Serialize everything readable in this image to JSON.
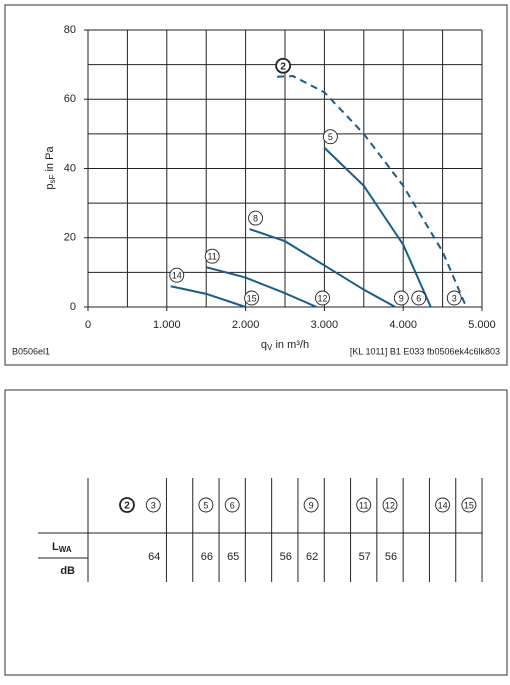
{
  "chart_data": {
    "type": "line",
    "ylabel": {
      "main": "p",
      "sub": "sF",
      "rest": " in Pa"
    },
    "xlabel": {
      "main": "q",
      "sub": "V",
      "rest": " in m³/h"
    },
    "xlim": [
      0,
      5000
    ],
    "ylim": [
      0,
      80
    ],
    "xticks": [
      0,
      {
        "value": 1000,
        "label": "1.000"
      },
      {
        "value": 2000,
        "label": "2.000"
      },
      {
        "value": 3000,
        "label": "3.000"
      },
      {
        "value": 4000,
        "label": "4.000"
      },
      {
        "value": 5000,
        "label": "5.000"
      }
    ],
    "yticks": [
      0,
      20,
      40,
      60,
      80
    ],
    "xgrid": [
      0,
      500,
      1000,
      1500,
      2000,
      2500,
      3000,
      3500,
      4000,
      4500,
      5000
    ],
    "ygrid": [
      0,
      10,
      20,
      30,
      40,
      50,
      60,
      70,
      80
    ],
    "series": [
      {
        "name": "2",
        "end_label": "3",
        "dashed": true,
        "color": "#1b5d86",
        "x": [
          2400,
          2600,
          3000,
          3500,
          4000,
          4500,
          4800
        ],
        "values": [
          66.5,
          66.7,
          62,
          50,
          35,
          16,
          0
        ]
      },
      {
        "name": "5",
        "end_label": "6",
        "dashed": false,
        "color": "#1b5d86",
        "x": [
          3000,
          3500,
          4000,
          4350
        ],
        "values": [
          46,
          35,
          18,
          0
        ]
      },
      {
        "name": "8",
        "end_label": "9",
        "dashed": false,
        "color": "#1b5d86",
        "x": [
          2050,
          2500,
          3000,
          3500,
          3900
        ],
        "values": [
          22.5,
          19,
          12,
          5,
          0
        ]
      },
      {
        "name": "11",
        "end_label": "12",
        "dashed": false,
        "color": "#1b5d86",
        "x": [
          1500,
          2000,
          2500,
          2900
        ],
        "values": [
          11.5,
          8.5,
          4,
          0
        ]
      },
      {
        "name": "14",
        "end_label": "15",
        "dashed": false,
        "color": "#1b5d86",
        "x": [
          1050,
          1500,
          2000
        ],
        "values": [
          6,
          3.8,
          0
        ]
      }
    ],
    "footer_left": "B0506el1",
    "footer_right": "[KL 1011] B1 E033 fb0506ek4c6lk803"
  },
  "table": {
    "columns": [
      "2",
      "3",
      null,
      "5",
      "6",
      null,
      null,
      "9",
      null,
      "11",
      "12",
      null,
      "14",
      "15"
    ],
    "row_label": {
      "main": "L",
      "sub": "WA"
    },
    "unit": "dB",
    "values": [
      null,
      "64",
      null,
      "66",
      "65",
      null,
      "56",
      "62",
      null,
      "57",
      "56",
      null,
      null,
      null
    ]
  }
}
